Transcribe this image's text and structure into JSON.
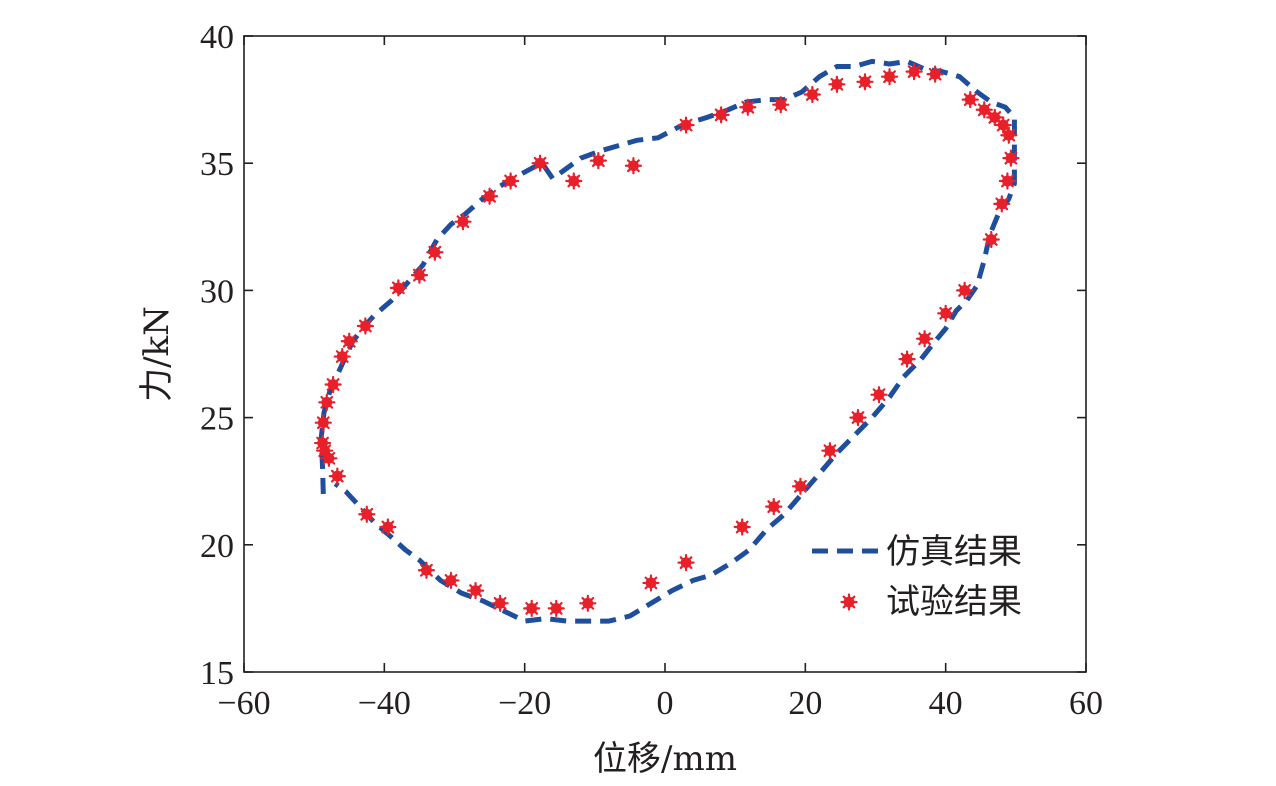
{
  "chart_data": {
    "type": "scatter",
    "title": "",
    "xlabel": "位移/mm",
    "ylabel": "力/kN",
    "xlim": [
      -60,
      60
    ],
    "ylim": [
      15,
      40
    ],
    "xticks": [
      -60,
      -40,
      -20,
      0,
      20,
      40,
      60
    ],
    "yticks": [
      15,
      20,
      25,
      30,
      35,
      40
    ],
    "xtick_labels": [
      "−60",
      "−40",
      "−20",
      "0",
      "20",
      "40",
      "60"
    ],
    "ytick_labels": [
      "15",
      "20",
      "25",
      "30",
      "35",
      "40"
    ],
    "grid": false,
    "legend_position": "bottom-right",
    "series": [
      {
        "name": "仿真结果",
        "style": "dashed-line",
        "color": "#1f4e9c",
        "points": [
          [
            -48.7,
            22.0
          ],
          [
            -48.8,
            23.0
          ],
          [
            -49.0,
            24.2
          ],
          [
            -48.6,
            25.2
          ],
          [
            -47.8,
            26.0
          ],
          [
            -46.5,
            26.8
          ],
          [
            -45.5,
            27.4
          ],
          [
            -44.5,
            28.0
          ],
          [
            -42.8,
            28.6
          ],
          [
            -41.5,
            29.0
          ],
          [
            -39.0,
            29.6
          ],
          [
            -37.0,
            30.2
          ],
          [
            -34.5,
            31.0
          ],
          [
            -32.5,
            32.0
          ],
          [
            -30.5,
            32.6
          ],
          [
            -28.5,
            33.0
          ],
          [
            -26.0,
            33.6
          ],
          [
            -23.5,
            34.1
          ],
          [
            -21.0,
            34.5
          ],
          [
            -19.0,
            34.8
          ],
          [
            -17.5,
            35.0
          ],
          [
            -16.0,
            34.4
          ],
          [
            -14.5,
            34.7
          ],
          [
            -12.0,
            35.2
          ],
          [
            -9.0,
            35.5
          ],
          [
            -6.5,
            35.7
          ],
          [
            -4.0,
            35.9
          ],
          [
            -1.0,
            36.0
          ],
          [
            2.5,
            36.5
          ],
          [
            6.0,
            36.8
          ],
          [
            9.0,
            37.1
          ],
          [
            11.5,
            37.4
          ],
          [
            14.5,
            37.5
          ],
          [
            17.0,
            37.5
          ],
          [
            19.5,
            37.8
          ],
          [
            22.0,
            38.4
          ],
          [
            24.5,
            38.8
          ],
          [
            27.0,
            38.8
          ],
          [
            29.5,
            39.0
          ],
          [
            32.0,
            38.9
          ],
          [
            34.5,
            39.0
          ],
          [
            37.0,
            38.7
          ],
          [
            39.5,
            38.6
          ],
          [
            42.0,
            38.4
          ],
          [
            44.5,
            37.8
          ],
          [
            46.5,
            37.4
          ],
          [
            48.5,
            37.2
          ],
          [
            49.8,
            36.8
          ],
          [
            49.8,
            36.0
          ],
          [
            49.8,
            35.2
          ],
          [
            49.8,
            34.2
          ],
          [
            49.0,
            33.6
          ],
          [
            47.5,
            33.0
          ],
          [
            46.3,
            32.2
          ],
          [
            45.5,
            31.2
          ],
          [
            44.5,
            30.2
          ],
          [
            43.0,
            29.6
          ],
          [
            41.5,
            29.2
          ],
          [
            40.0,
            28.5
          ],
          [
            38.5,
            28.0
          ],
          [
            36.5,
            27.3
          ],
          [
            34.0,
            26.6
          ],
          [
            32.0,
            25.8
          ],
          [
            29.5,
            25.0
          ],
          [
            27.0,
            24.3
          ],
          [
            24.5,
            23.6
          ],
          [
            22.0,
            22.8
          ],
          [
            19.5,
            22.0
          ],
          [
            17.0,
            21.2
          ],
          [
            14.5,
            20.6
          ],
          [
            12.0,
            19.8
          ],
          [
            9.5,
            19.3
          ],
          [
            6.5,
            18.8
          ],
          [
            4.0,
            18.6
          ],
          [
            1.0,
            18.2
          ],
          [
            -2.0,
            17.7
          ],
          [
            -5.0,
            17.2
          ],
          [
            -8.0,
            17.0
          ],
          [
            -11.0,
            17.0
          ],
          [
            -14.0,
            17.0
          ],
          [
            -17.0,
            17.1
          ],
          [
            -20.0,
            17.0
          ],
          [
            -23.0,
            17.4
          ],
          [
            -26.0,
            17.8
          ],
          [
            -29.0,
            18.1
          ],
          [
            -32.0,
            18.6
          ],
          [
            -35.0,
            19.4
          ],
          [
            -37.0,
            19.8
          ],
          [
            -39.0,
            20.3
          ],
          [
            -41.5,
            20.9
          ],
          [
            -43.5,
            21.5
          ],
          [
            -45.5,
            22.1
          ],
          [
            -47.0,
            22.4
          ]
        ]
      },
      {
        "name": "试验结果",
        "style": "asterisk-markers",
        "color": "#e8202a",
        "points": [
          [
            -48.8,
            24.0
          ],
          [
            -48.5,
            23.7
          ],
          [
            -47.9,
            23.4
          ],
          [
            -46.7,
            22.7
          ],
          [
            -48.7,
            24.8
          ],
          [
            -48.2,
            25.6
          ],
          [
            -47.3,
            26.3
          ],
          [
            -46.0,
            27.4
          ],
          [
            -45.0,
            28.0
          ],
          [
            -42.7,
            28.6
          ],
          [
            -38.0,
            30.1
          ],
          [
            -35.0,
            30.6
          ],
          [
            -32.8,
            31.5
          ],
          [
            -28.8,
            32.7
          ],
          [
            -25.0,
            33.7
          ],
          [
            -22.0,
            34.3
          ],
          [
            -17.8,
            35.0
          ],
          [
            -13.0,
            34.3
          ],
          [
            -9.5,
            35.1
          ],
          [
            -4.5,
            34.9
          ],
          [
            3.0,
            36.5
          ],
          [
            8.0,
            36.9
          ],
          [
            11.8,
            37.2
          ],
          [
            16.5,
            37.3
          ],
          [
            21.0,
            37.7
          ],
          [
            24.5,
            38.1
          ],
          [
            28.5,
            38.2
          ],
          [
            32.0,
            38.4
          ],
          [
            35.5,
            38.6
          ],
          [
            38.5,
            38.5
          ],
          [
            43.5,
            37.5
          ],
          [
            45.5,
            37.1
          ],
          [
            47.0,
            36.8
          ],
          [
            48.2,
            36.5
          ],
          [
            49.0,
            36.1
          ],
          [
            49.3,
            35.2
          ],
          [
            48.8,
            34.3
          ],
          [
            48.0,
            33.4
          ],
          [
            46.5,
            32.0
          ],
          [
            42.7,
            30.0
          ],
          [
            40.0,
            29.1
          ],
          [
            37.0,
            28.1
          ],
          [
            34.5,
            27.3
          ],
          [
            30.5,
            25.9
          ],
          [
            27.5,
            25.0
          ],
          [
            23.5,
            23.7
          ],
          [
            19.3,
            22.3
          ],
          [
            15.5,
            21.5
          ],
          [
            11.0,
            20.7
          ],
          [
            3.0,
            19.3
          ],
          [
            -2.0,
            18.5
          ],
          [
            -11.0,
            17.7
          ],
          [
            -15.5,
            17.5
          ],
          [
            -19.0,
            17.5
          ],
          [
            -23.5,
            17.7
          ],
          [
            -27.0,
            18.2
          ],
          [
            -30.5,
            18.6
          ],
          [
            -34.0,
            19.0
          ],
          [
            -39.5,
            20.7
          ],
          [
            -42.5,
            21.2
          ]
        ]
      }
    ]
  }
}
